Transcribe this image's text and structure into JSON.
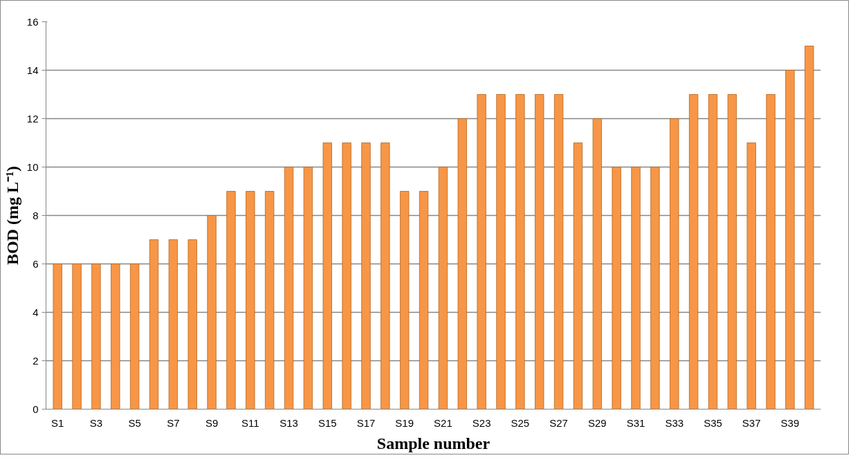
{
  "chart_data": {
    "type": "bar",
    "xlabel": "Sample number",
    "ylabel": "BOD (mg L⁻¹)",
    "categories": [
      "S1",
      null,
      "S3",
      null,
      "S5",
      null,
      "S7",
      null,
      "S9",
      null,
      "S11",
      null,
      "S13",
      null,
      "S15",
      null,
      "S17",
      null,
      "S19",
      null,
      "S21",
      null,
      "S23",
      null,
      "S25",
      null,
      "S27",
      null,
      "S29",
      null,
      "S31",
      null,
      "S33",
      null,
      "S35",
      null,
      "S37",
      null,
      "S39",
      null
    ],
    "values": [
      6,
      6,
      6,
      6,
      6,
      7,
      7,
      7,
      8,
      9,
      9,
      9,
      10,
      10,
      11,
      11,
      11,
      11,
      9,
      9,
      10,
      12,
      13,
      13,
      13,
      13,
      13,
      11,
      12,
      10,
      10,
      10,
      12,
      13,
      13,
      13,
      11,
      13,
      14,
      15
    ],
    "color": "#f79646",
    "ylim": [
      0,
      16
    ],
    "yticks": [
      0,
      2,
      4,
      6,
      8,
      10,
      12,
      14,
      16
    ],
    "grid": "y"
  }
}
